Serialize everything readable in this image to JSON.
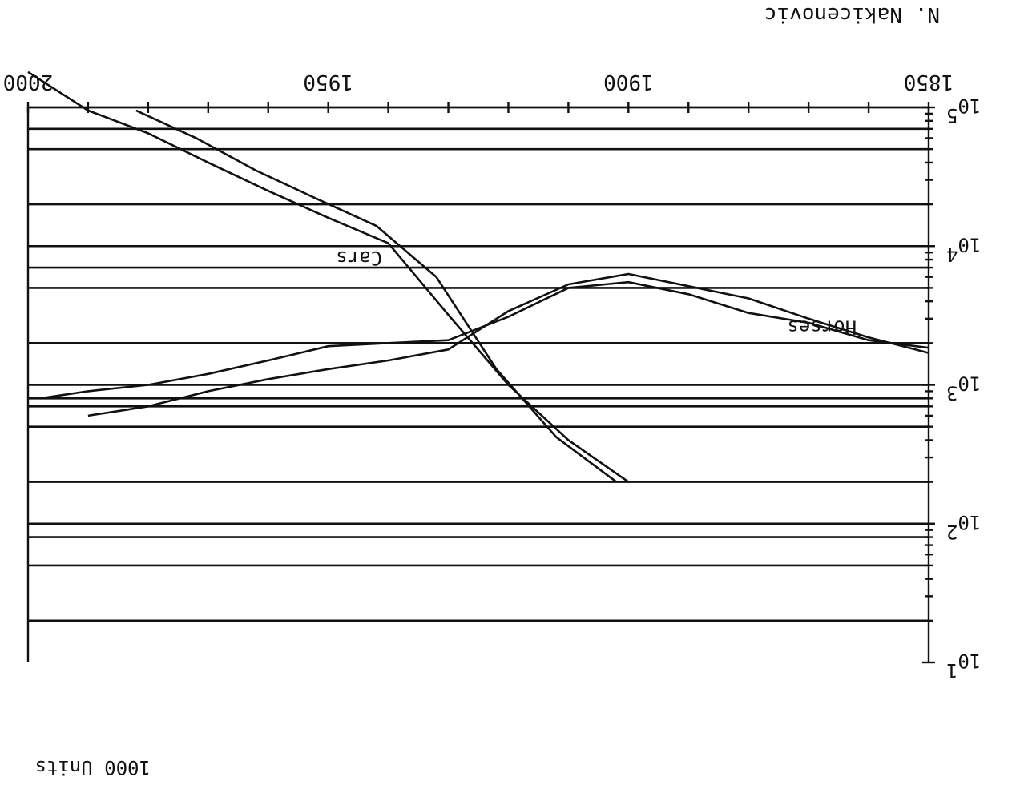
{
  "author": "N. Nakicenovic",
  "ylabel": "1000 Units",
  "chart_data": {
    "type": "line",
    "xlim": [
      1850,
      2000
    ],
    "ylim": [
      10,
      100000
    ],
    "yscale": "log",
    "grid": true,
    "orientation": "rotated-180",
    "x_tick_labels": [
      "1850",
      "1900",
      "1950",
      "2000"
    ],
    "x_minor_step": 10,
    "y_tick_labels": [
      {
        "base": "10",
        "exp": "1",
        "value": 10
      },
      {
        "base": "10",
        "exp": "2",
        "value": 100
      },
      {
        "base": "10",
        "exp": "3",
        "value": 1000
      },
      {
        "base": "10",
        "exp": "4",
        "value": 10000
      },
      {
        "base": "10",
        "exp": "5",
        "value": 100000
      }
    ],
    "hgrid_values": [
      20,
      50,
      80,
      100,
      200,
      500,
      700,
      800,
      1000,
      2000,
      5000,
      7000,
      10000,
      20000,
      50000,
      70000,
      100000
    ],
    "series": [
      {
        "name": "Horses",
        "label": "Horses",
        "points": [
          [
            1850,
            1850
          ],
          [
            1860,
            2100
          ],
          [
            1870,
            2800
          ],
          [
            1880,
            3300
          ],
          [
            1890,
            4500
          ],
          [
            1900,
            5500
          ],
          [
            1910,
            5000
          ],
          [
            1920,
            3100
          ],
          [
            1930,
            2100
          ],
          [
            1940,
            2000
          ],
          [
            1950,
            1900
          ],
          [
            1960,
            1500
          ],
          [
            1970,
            1200
          ],
          [
            1980,
            1000
          ],
          [
            1990,
            900
          ],
          [
            1998,
            800
          ]
        ]
      },
      {
        "name": "Cars",
        "label": "Cars",
        "points": [
          [
            1850,
            1700
          ],
          [
            1860,
            2200
          ],
          [
            1870,
            3000
          ],
          [
            1880,
            4200
          ],
          [
            1900,
            6300
          ],
          [
            1910,
            5300
          ],
          [
            1920,
            3400
          ],
          [
            1930,
            1800
          ],
          [
            1940,
            1500
          ],
          [
            1950,
            1300
          ],
          [
            1960,
            1100
          ],
          [
            1970,
            900
          ],
          [
            1980,
            700
          ],
          [
            1990,
            600
          ]
        ]
      },
      {
        "name": "",
        "points": [
          [
            1900,
            200
          ],
          [
            1910,
            400
          ],
          [
            1920,
            1000
          ],
          [
            1930,
            3200
          ],
          [
            1940,
            10500
          ],
          [
            1950,
            16000
          ],
          [
            1960,
            25000
          ],
          [
            1970,
            40000
          ],
          [
            1980,
            65000
          ],
          [
            1990,
            95000
          ],
          [
            2000,
            180000
          ]
        ]
      },
      {
        "name": "",
        "points": [
          [
            1902,
            200
          ],
          [
            1912,
            420
          ],
          [
            1922,
            1300
          ],
          [
            1932,
            6000
          ],
          [
            1942,
            14000
          ],
          [
            1952,
            22000
          ],
          [
            1962,
            35000
          ],
          [
            1972,
            60000
          ],
          [
            1982,
            95000
          ]
        ]
      }
    ]
  }
}
